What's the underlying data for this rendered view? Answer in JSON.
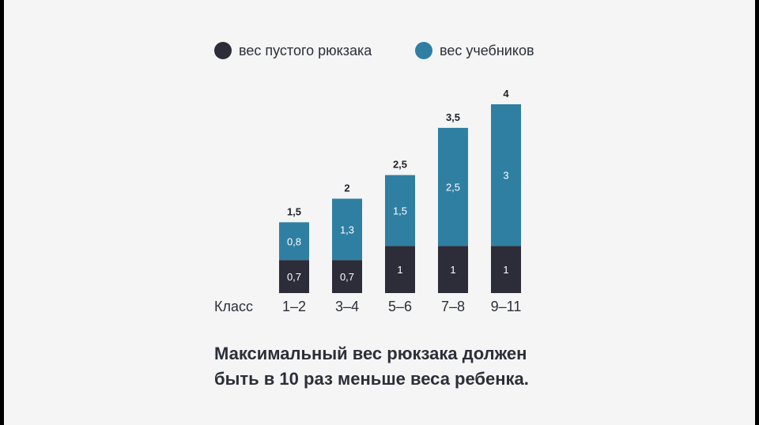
{
  "chart_data": {
    "type": "bar",
    "stacked": true,
    "categories": [
      "1–2",
      "3–4",
      "5–6",
      "7–8",
      "9–11"
    ],
    "xlabel": "Класс",
    "series": [
      {
        "name": "вес пустого рюкзака",
        "color": "#2c2d39",
        "values": [
          0.7,
          0.7,
          1,
          1,
          1
        ],
        "labels": [
          "0,7",
          "0,7",
          "1",
          "1",
          "1"
        ]
      },
      {
        "name": "вес учебников",
        "color": "#2f7fa3",
        "values": [
          0.8,
          1.3,
          1.5,
          2.5,
          3
        ],
        "labels": [
          "0,8",
          "1,3",
          "1,5",
          "2,5",
          "3"
        ]
      }
    ],
    "totals": [
      1.5,
      2,
      2.5,
      3.5,
      4
    ],
    "total_labels": [
      "1,5",
      "2",
      "2,5",
      "3,5",
      "4"
    ],
    "ylim": [
      0,
      4
    ],
    "legend": "top"
  },
  "note": {
    "line1": "Максимальный вес рюкзака должен",
    "line2": "быть в 10 раз меньше веса ребенка."
  }
}
